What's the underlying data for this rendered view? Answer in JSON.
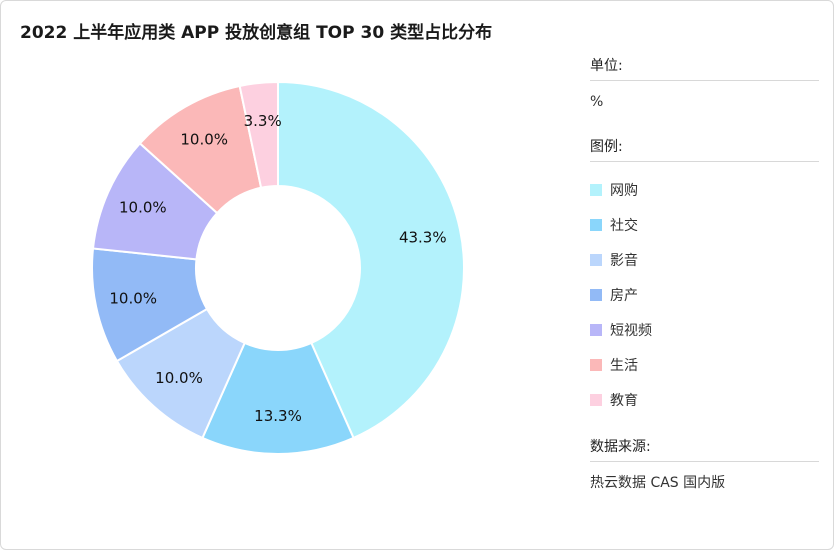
{
  "title": "2022 上半年应用类 APP 投放创意组 TOP 30 类型占比分布",
  "unit": {
    "heading": "单位:",
    "value": "%"
  },
  "legend": {
    "heading": "图例:"
  },
  "source": {
    "heading": "数据来源:",
    "value": "热云数据 CAS 国内版"
  },
  "chart_data": {
    "type": "pie",
    "donut": true,
    "unit": "%",
    "legend_position": "right",
    "slices": [
      {
        "name": "网购",
        "value": 43.3,
        "label": "43.3%",
        "color": "#b3f2fc"
      },
      {
        "name": "社交",
        "value": 13.3,
        "label": "13.3%",
        "color": "#8ad6fb"
      },
      {
        "name": "影音",
        "value": 10.0,
        "label": "10.0%",
        "color": "#bbd6fc"
      },
      {
        "name": "房产",
        "value": 10.0,
        "label": "10.0%",
        "color": "#92baf6"
      },
      {
        "name": "短视频",
        "value": 10.0,
        "label": "10.0%",
        "color": "#b8b6f8"
      },
      {
        "name": "生活",
        "value": 10.0,
        "label": "10.0%",
        "color": "#fbb8b8"
      },
      {
        "name": "教育",
        "value": 3.3,
        "label": "3.3%",
        "color": "#fdd0e0"
      }
    ]
  }
}
